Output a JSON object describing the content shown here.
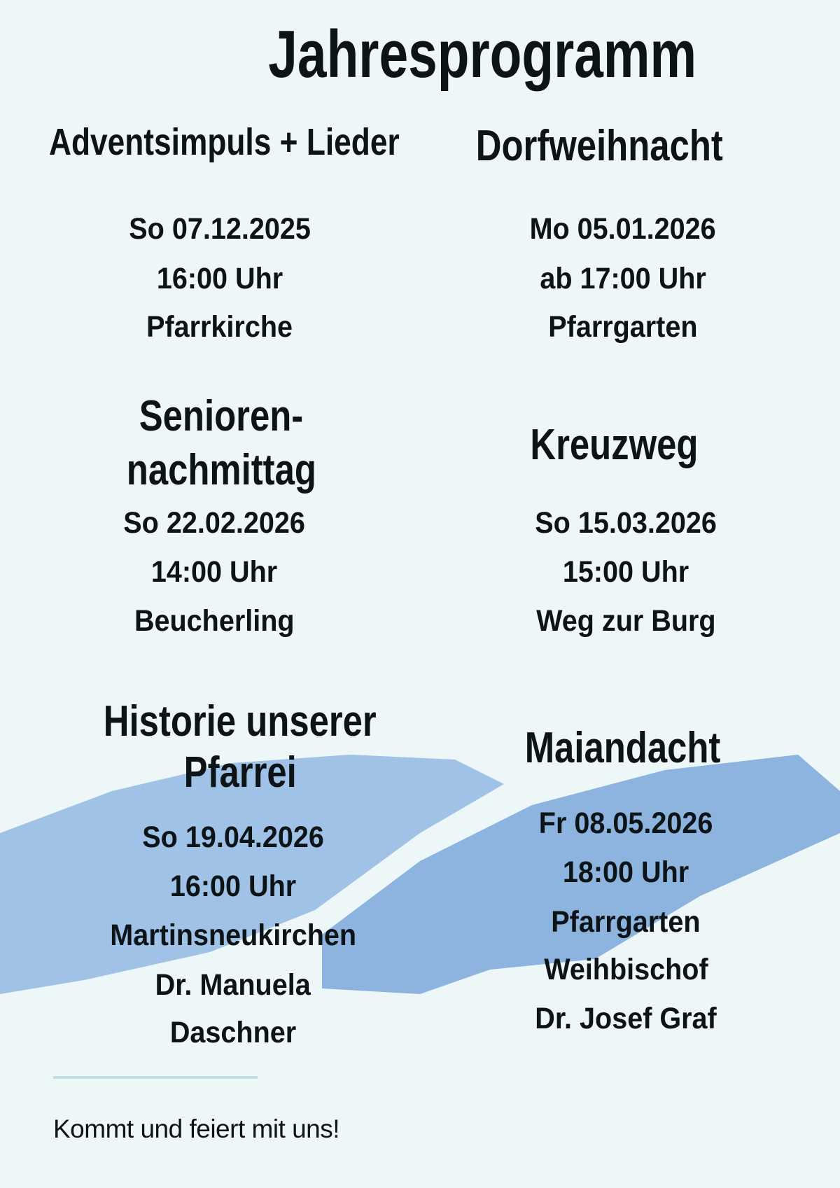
{
  "title": "Jahresprogramm",
  "events": [
    {
      "title_lines": [
        "Adventsimpuls + Lieder"
      ],
      "details": [
        "So 07.12.2025",
        "16:00 Uhr",
        "Pfarrkirche"
      ]
    },
    {
      "title_lines": [
        "Dorfweihnacht"
      ],
      "details": [
        "Mo 05.01.2026",
        "ab 17:00 Uhr",
        "Pfarrgarten"
      ]
    },
    {
      "title_lines": [
        "Senioren-",
        "nachmittag"
      ],
      "details": [
        "So 22.02.2026",
        "14:00 Uhr",
        "Beucherling"
      ]
    },
    {
      "title_lines": [
        "Kreuzweg"
      ],
      "details": [
        "So 15.03.2026",
        "15:00 Uhr",
        "Weg zur Burg"
      ]
    },
    {
      "title_lines": [
        "Historie unserer",
        "Pfarrei"
      ],
      "details": [
        "So 19.04.2026",
        "16:00 Uhr",
        "Martinsneukirchen",
        "Dr. Manuela",
        "Daschner"
      ]
    },
    {
      "title_lines": [
        "Maiandacht"
      ],
      "details": [
        "Fr 08.05.2026",
        "18:00 Uhr",
        "Pfarrgarten",
        "Weihbischof",
        "Dr. Josef Graf"
      ]
    }
  ],
  "footer": "Kommt und feiert mit uns!",
  "colors": {
    "background": "#eef7f8",
    "brush_light": "#a0c2e6",
    "brush_dark": "#8cb4df",
    "text": "#0d1417",
    "rule": "#bfdfe0"
  }
}
